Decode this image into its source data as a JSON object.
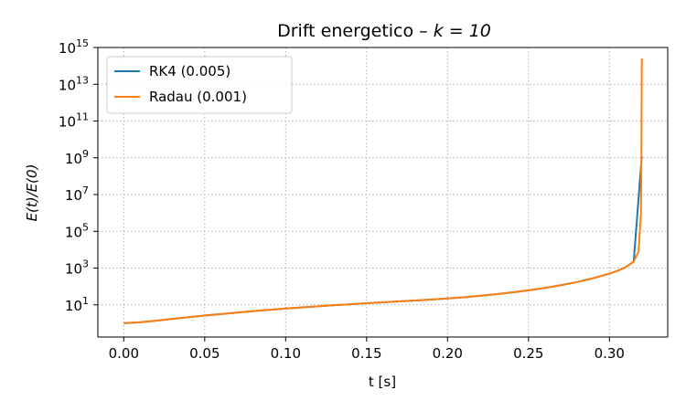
{
  "chart_data": {
    "type": "line",
    "title_text": "Drift energetico  –  ",
    "title_math": "k = 10",
    "xlabel": "t [s]",
    "ylabel": "E(t)/E(0)",
    "y_scale": "log",
    "xlim": [
      -0.016,
      0.336
    ],
    "ylim_log10": [
      -0.75,
      15.0
    ],
    "x_ticks": [
      0.0,
      0.05,
      0.1,
      0.15,
      0.2,
      0.25,
      0.3
    ],
    "x_tick_labels": [
      "0.00",
      "0.05",
      "0.10",
      "0.15",
      "0.20",
      "0.25",
      "0.30"
    ],
    "y_ticks_log10": [
      1,
      3,
      5,
      7,
      9,
      11,
      13,
      15
    ],
    "y_tick_base": "10",
    "y_tick_exponents": [
      "1",
      "3",
      "5",
      "7",
      "9",
      "11",
      "13",
      "15"
    ],
    "grid": true,
    "legend_position": "top-left",
    "series": [
      {
        "name": "RK4 (0.005)",
        "color": "#1f77b4",
        "x": [
          0.0,
          0.01,
          0.02,
          0.03,
          0.04,
          0.05,
          0.06,
          0.07,
          0.08,
          0.09,
          0.1,
          0.11,
          0.12,
          0.13,
          0.14,
          0.15,
          0.16,
          0.17,
          0.18,
          0.19,
          0.2,
          0.21,
          0.22,
          0.23,
          0.24,
          0.25,
          0.26,
          0.27,
          0.28,
          0.29,
          0.3,
          0.305,
          0.31,
          0.315,
          0.32
        ],
        "log10_y": [
          0.0,
          0.05,
          0.14,
          0.24,
          0.33,
          0.42,
          0.5,
          0.58,
          0.66,
          0.73,
          0.8,
          0.86,
          0.92,
          0.98,
          1.03,
          1.09,
          1.14,
          1.19,
          1.24,
          1.29,
          1.35,
          1.41,
          1.49,
          1.58,
          1.68,
          1.79,
          1.92,
          2.07,
          2.24,
          2.45,
          2.7,
          2.85,
          3.05,
          3.35,
          9.1
        ]
      },
      {
        "name": "Radau (0.001)",
        "color": "#ff7f0e",
        "x": [
          0.0,
          0.01,
          0.02,
          0.03,
          0.04,
          0.05,
          0.06,
          0.07,
          0.08,
          0.09,
          0.1,
          0.11,
          0.12,
          0.13,
          0.14,
          0.15,
          0.16,
          0.17,
          0.18,
          0.19,
          0.2,
          0.21,
          0.22,
          0.23,
          0.24,
          0.25,
          0.26,
          0.27,
          0.28,
          0.29,
          0.3,
          0.305,
          0.31,
          0.315,
          0.318,
          0.3195,
          0.3198,
          0.32
        ],
        "log10_y": [
          0.0,
          0.05,
          0.14,
          0.24,
          0.33,
          0.42,
          0.5,
          0.58,
          0.66,
          0.73,
          0.8,
          0.86,
          0.92,
          0.98,
          1.03,
          1.09,
          1.14,
          1.19,
          1.24,
          1.29,
          1.35,
          1.41,
          1.49,
          1.58,
          1.68,
          1.79,
          1.92,
          2.07,
          2.24,
          2.45,
          2.7,
          2.85,
          3.05,
          3.35,
          3.9,
          6.0,
          10.0,
          14.4
        ]
      }
    ]
  }
}
